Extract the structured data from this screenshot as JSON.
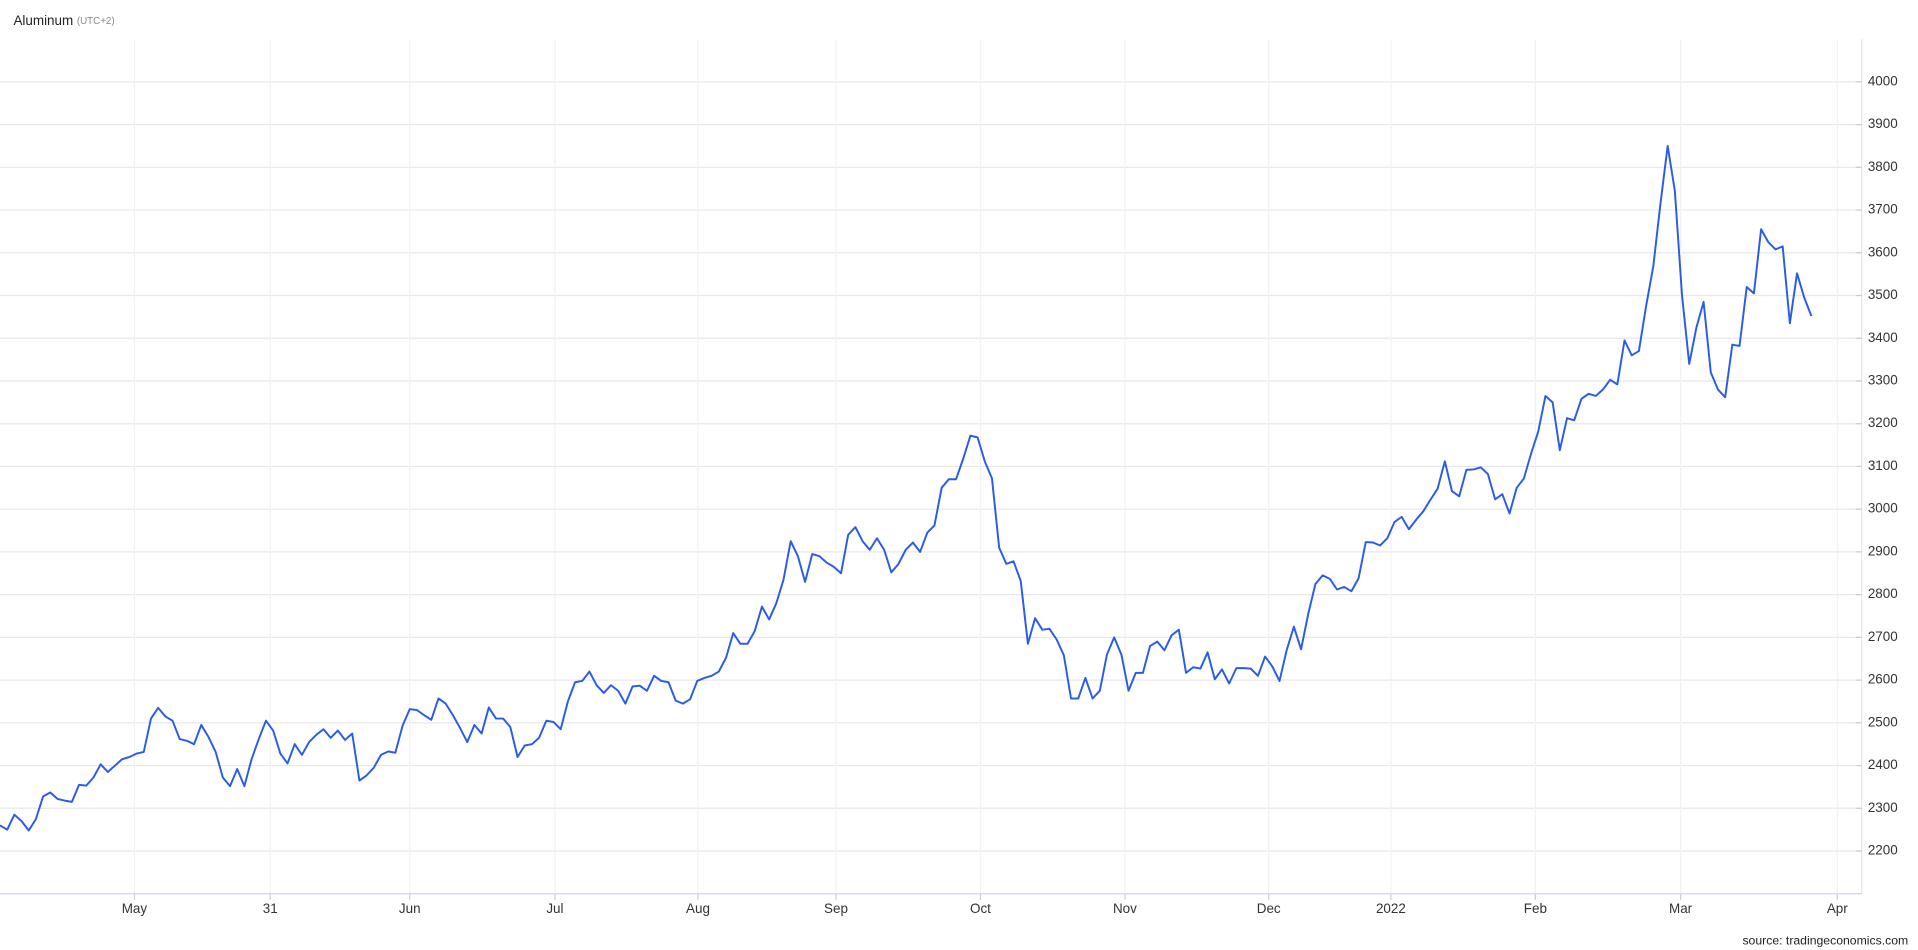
{
  "chart_data": {
    "type": "line",
    "title": "Aluminum",
    "subtitle": "(UTC+2)",
    "source": "source: tradingeconomics.com",
    "color": "#2a5ce8",
    "grid": true,
    "ylim": [
      2100,
      4100
    ],
    "yticks": [
      2200,
      2300,
      2400,
      2500,
      2600,
      2700,
      2800,
      2900,
      3000,
      3100,
      3200,
      3300,
      3400,
      3500,
      3600,
      3700,
      3800,
      3900,
      4000
    ],
    "xlim": [
      0,
      259
    ],
    "xticks": [
      {
        "value": 18.7,
        "label": "May"
      },
      {
        "value": 37.6,
        "label": "31"
      },
      {
        "value": 57,
        "label": "Jun"
      },
      {
        "value": 77.2,
        "label": "Jul"
      },
      {
        "value": 97.1,
        "label": "Aug"
      },
      {
        "value": 116.3,
        "label": "Sep"
      },
      {
        "value": 136.4,
        "label": "Oct"
      },
      {
        "value": 156.5,
        "label": "Nov"
      },
      {
        "value": 176.5,
        "label": "Dec"
      },
      {
        "value": 193.5,
        "label": "2022"
      },
      {
        "value": 213.6,
        "label": "Feb"
      },
      {
        "value": 233.8,
        "label": "Mar"
      },
      {
        "value": 255.6,
        "label": "Apr"
      }
    ],
    "values": [
      2260,
      2250,
      2285,
      2270,
      2248,
      2275,
      2328,
      2337,
      2322,
      2318,
      2315,
      2355,
      2353,
      2372,
      2403,
      2385,
      2400,
      2415,
      2420,
      2428,
      2432,
      2510,
      2535,
      2515,
      2505,
      2462,
      2458,
      2450,
      2495,
      2467,
      2432,
      2372,
      2352,
      2392,
      2352,
      2415,
      2462,
      2505,
      2482,
      2428,
      2405,
      2450,
      2425,
      2455,
      2472,
      2485,
      2465,
      2482,
      2460,
      2475,
      2365,
      2377,
      2395,
      2425,
      2433,
      2430,
      2493,
      2532,
      2530,
      2518,
      2507,
      2557,
      2545,
      2518,
      2488,
      2455,
      2495,
      2475,
      2536,
      2510,
      2510,
      2490,
      2420,
      2447,
      2450,
      2465,
      2505,
      2502,
      2485,
      2550,
      2595,
      2598,
      2620,
      2588,
      2570,
      2588,
      2575,
      2545,
      2585,
      2587,
      2575,
      2610,
      2598,
      2595,
      2552,
      2545,
      2555,
      2598,
      2605,
      2610,
      2620,
      2652,
      2710,
      2685,
      2685,
      2715,
      2772,
      2742,
      2780,
      2835,
      2925,
      2890,
      2830,
      2895,
      2890,
      2875,
      2865,
      2850,
      2940,
      2958,
      2925,
      2905,
      2932,
      2905,
      2852,
      2872,
      2905,
      2922,
      2900,
      2945,
      2962,
      3050,
      3070,
      3070,
      3118,
      3172,
      3168,
      3112,
      3072,
      2910,
      2872,
      2878,
      2832,
      2685,
      2745,
      2718,
      2720,
      2695,
      2658,
      2557,
      2557,
      2605,
      2557,
      2575,
      2660,
      2700,
      2660,
      2575,
      2617,
      2617,
      2680,
      2690,
      2670,
      2705,
      2718,
      2617,
      2630,
      2627,
      2665,
      2602,
      2625,
      2592,
      2628,
      2628,
      2627,
      2610,
      2655,
      2632,
      2598,
      2670,
      2725,
      2672,
      2755,
      2825,
      2845,
      2837,
      2812,
      2818,
      2808,
      2838,
      2923,
      2922,
      2915,
      2932,
      2970,
      2982,
      2953,
      2975,
      2995,
      3022,
      3048,
      3112,
      3042,
      3030,
      3092,
      3093,
      3098,
      3082,
      3023,
      3035,
      2990,
      3050,
      3072,
      3130,
      3182,
      3265,
      3250,
      3138,
      3213,
      3208,
      3258,
      3270,
      3265,
      3280,
      3303,
      3292,
      3395,
      3360,
      3370,
      3475,
      3568,
      3715,
      3850,
      3745,
      3500,
      3340,
      3425,
      3485,
      3320,
      3280,
      3262,
      3385,
      3382,
      3520,
      3505,
      3655,
      3625,
      3608,
      3615,
      3435,
      3552,
      3495,
      3452
    ]
  }
}
